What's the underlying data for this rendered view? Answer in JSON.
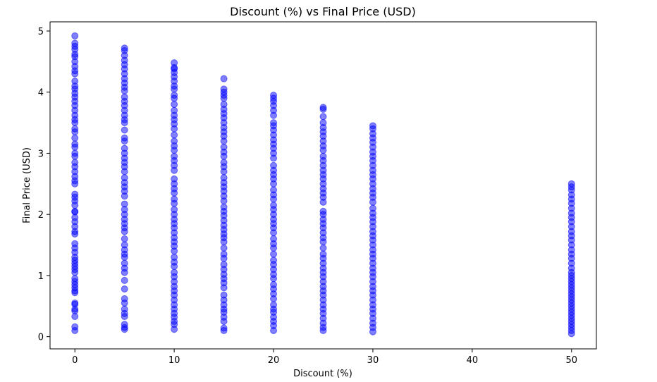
{
  "chart_data": {
    "type": "scatter",
    "title": "Discount (%) vs Final Price (USD)",
    "xlabel": "Discount (%)",
    "ylabel": "Final Price (USD)",
    "xlim": [
      -2.5,
      52.5
    ],
    "ylim": [
      -0.2,
      5.15
    ],
    "xticks": [
      0,
      10,
      20,
      30,
      40,
      50
    ],
    "yticks": [
      0,
      1,
      2,
      3,
      4,
      5
    ],
    "grid": false,
    "marker_color": "#0000ff",
    "marker_alpha": 0.5,
    "series": [
      {
        "x": 0,
        "y": [
          0.1,
          0.16,
          0.33,
          0.42,
          0.45,
          0.53,
          0.55,
          0.72,
          0.75,
          0.8,
          0.85,
          0.9,
          0.95,
          1.05,
          1.1,
          1.15,
          1.2,
          1.25,
          1.3,
          1.38,
          1.45,
          1.52,
          1.68,
          1.72,
          1.8,
          1.88,
          1.95,
          2.04,
          2.05,
          2.15,
          2.22,
          2.28,
          2.33,
          2.5,
          2.55,
          2.62,
          2.7,
          2.78,
          2.85,
          2.95,
          3.0,
          3.1,
          3.15,
          3.25,
          3.35,
          3.4,
          3.5,
          3.55,
          3.62,
          3.7,
          3.78,
          3.85,
          3.92,
          3.98,
          4.05,
          4.1,
          4.18,
          4.3,
          4.35,
          4.42,
          4.5,
          4.58,
          4.62,
          4.7,
          4.75,
          4.8,
          4.92
        ]
      },
      {
        "x": 5,
        "y": [
          0.12,
          0.15,
          0.2,
          0.33,
          0.38,
          0.45,
          0.55,
          0.62,
          0.78,
          0.92,
          1.05,
          1.12,
          1.2,
          1.3,
          1.35,
          1.42,
          1.5,
          1.6,
          1.72,
          1.78,
          1.85,
          1.92,
          2.0,
          2.08,
          2.17,
          2.3,
          2.38,
          2.45,
          2.52,
          2.6,
          2.7,
          2.78,
          2.85,
          2.92,
          3.0,
          3.08,
          3.2,
          3.25,
          3.38,
          3.5,
          3.55,
          3.62,
          3.7,
          3.78,
          3.85,
          3.92,
          4.02,
          4.08,
          4.15,
          4.22,
          4.3,
          4.38,
          4.45,
          4.52,
          4.6,
          4.68,
          4.72
        ]
      },
      {
        "x": 10,
        "y": [
          0.12,
          0.2,
          0.25,
          0.32,
          0.38,
          0.45,
          0.52,
          0.6,
          0.68,
          0.75,
          0.82,
          0.9,
          0.98,
          1.05,
          1.15,
          1.22,
          1.3,
          1.4,
          1.48,
          1.55,
          1.62,
          1.7,
          1.78,
          1.85,
          1.92,
          2.0,
          2.08,
          2.18,
          2.25,
          2.35,
          2.42,
          2.5,
          2.58,
          2.72,
          2.8,
          2.88,
          2.95,
          3.05,
          3.12,
          3.2,
          3.3,
          3.4,
          3.48,
          3.55,
          3.62,
          3.7,
          3.8,
          3.9,
          3.95,
          4.05,
          4.1,
          4.18,
          4.25,
          4.32,
          4.38,
          4.4,
          4.48
        ]
      },
      {
        "x": 15,
        "y": [
          0.1,
          0.14,
          0.25,
          0.32,
          0.4,
          0.45,
          0.52,
          0.6,
          0.68,
          0.8,
          0.88,
          0.95,
          1.02,
          1.1,
          1.18,
          1.28,
          1.35,
          1.45,
          1.55,
          1.62,
          1.68,
          1.75,
          1.82,
          1.9,
          1.98,
          2.05,
          2.12,
          2.22,
          2.3,
          2.38,
          2.45,
          2.52,
          2.6,
          2.7,
          2.78,
          2.85,
          2.95,
          3.02,
          3.1,
          3.2,
          3.28,
          3.35,
          3.42,
          3.5,
          3.58,
          3.65,
          3.72,
          3.8,
          3.9,
          3.95,
          4.0,
          4.05,
          4.22
        ]
      },
      {
        "x": 20,
        "y": [
          0.1,
          0.18,
          0.25,
          0.32,
          0.4,
          0.45,
          0.52,
          0.62,
          0.7,
          0.78,
          0.85,
          0.95,
          1.02,
          1.1,
          1.18,
          1.25,
          1.35,
          1.45,
          1.52,
          1.6,
          1.7,
          1.78,
          1.85,
          1.92,
          2.0,
          2.08,
          2.15,
          2.25,
          2.32,
          2.4,
          2.5,
          2.58,
          2.65,
          2.72,
          2.8,
          2.92,
          3.0,
          3.08,
          3.15,
          3.22,
          3.3,
          3.38,
          3.45,
          3.5,
          3.62,
          3.7,
          3.78,
          3.85,
          3.9,
          3.95
        ]
      },
      {
        "x": 25,
        "y": [
          0.1,
          0.15,
          0.22,
          0.3,
          0.38,
          0.45,
          0.52,
          0.6,
          0.68,
          0.75,
          0.82,
          0.9,
          0.98,
          1.05,
          1.12,
          1.2,
          1.28,
          1.35,
          1.45,
          1.55,
          1.62,
          1.7,
          1.78,
          1.85,
          1.92,
          2.0,
          2.05,
          2.2,
          2.28,
          2.35,
          2.42,
          2.5,
          2.58,
          2.65,
          2.72,
          2.8,
          2.88,
          2.95,
          3.05,
          3.12,
          3.2,
          3.28,
          3.35,
          3.42,
          3.5,
          3.6,
          3.72,
          3.75
        ]
      },
      {
        "x": 30,
        "y": [
          0.08,
          0.15,
          0.22,
          0.3,
          0.38,
          0.45,
          0.52,
          0.6,
          0.68,
          0.75,
          0.82,
          0.9,
          0.98,
          1.05,
          1.12,
          1.2,
          1.28,
          1.35,
          1.42,
          1.5,
          1.58,
          1.65,
          1.72,
          1.8,
          1.88,
          1.95,
          2.02,
          2.1,
          2.2,
          2.28,
          2.35,
          2.42,
          2.5,
          2.58,
          2.65,
          2.72,
          2.8,
          2.88,
          2.95,
          3.02,
          3.1,
          3.18,
          3.25,
          3.32,
          3.4,
          3.45
        ]
      },
      {
        "x": 50,
        "y": [
          0.05,
          0.1,
          0.15,
          0.2,
          0.25,
          0.3,
          0.35,
          0.4,
          0.45,
          0.5,
          0.55,
          0.6,
          0.65,
          0.7,
          0.75,
          0.8,
          0.85,
          0.9,
          0.95,
          1.0,
          1.05,
          1.12,
          1.2,
          1.28,
          1.35,
          1.42,
          1.5,
          1.58,
          1.65,
          1.72,
          1.8,
          1.88,
          1.95,
          2.02,
          2.1,
          2.18,
          2.25,
          2.32,
          2.4,
          2.45,
          2.5
        ]
      }
    ]
  }
}
